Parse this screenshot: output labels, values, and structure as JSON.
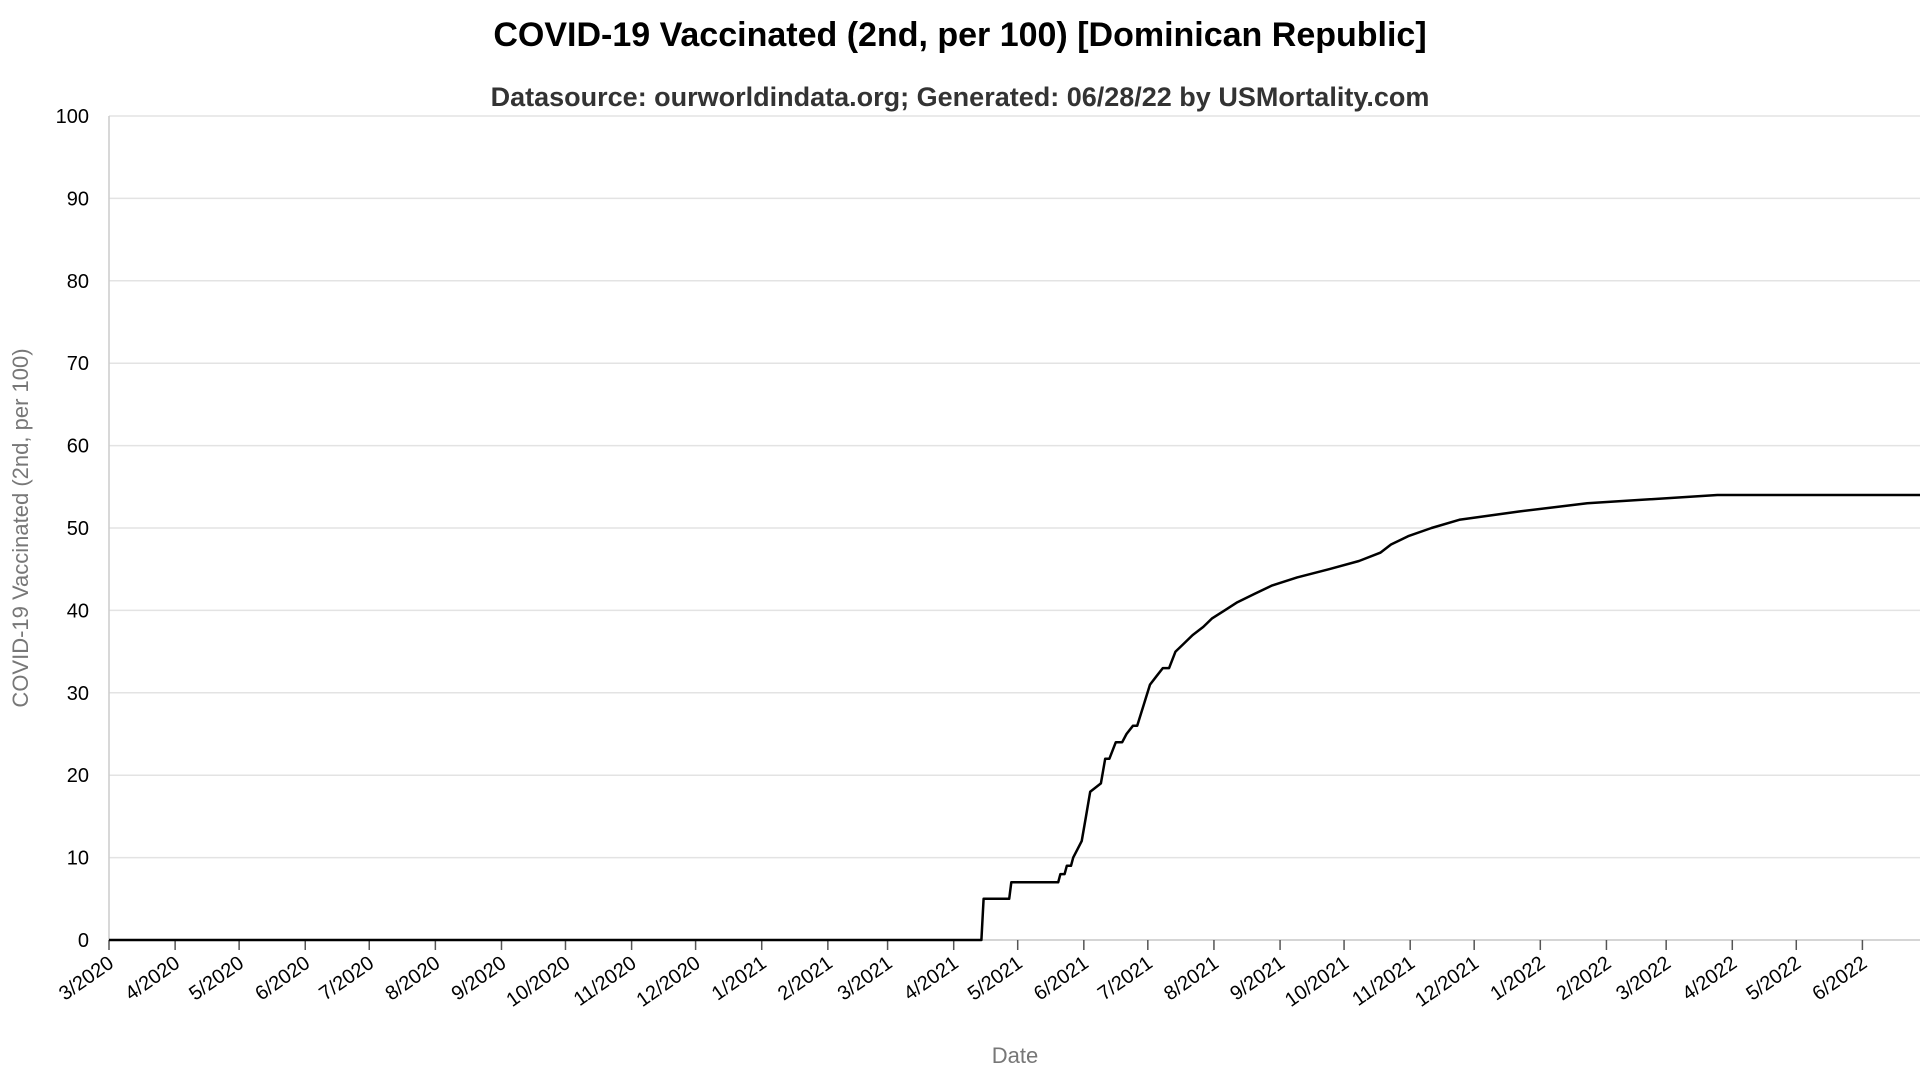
{
  "chart_data": {
    "type": "line",
    "title": "COVID-19 Vaccinated (2nd, per 100) [Dominican Republic]",
    "subtitle": "Datasource: ourworldindata.org; Generated: 06/28/22 by USMortality.com",
    "xlabel": "Date",
    "ylabel": "COVID-19 Vaccinated (2nd, per 100)",
    "ylim": [
      0,
      100
    ],
    "xlim": [
      "2020-03-01",
      "2022-06-28"
    ],
    "grid": true,
    "line_color": "#000000",
    "y_ticks": [
      0,
      10,
      20,
      30,
      40,
      50,
      60,
      70,
      80,
      90,
      100
    ],
    "x_ticks": [
      {
        "date": "2020-03-01",
        "label": "3/2020"
      },
      {
        "date": "2020-04-01",
        "label": "4/2020"
      },
      {
        "date": "2020-05-01",
        "label": "5/2020"
      },
      {
        "date": "2020-06-01",
        "label": "6/2020"
      },
      {
        "date": "2020-07-01",
        "label": "7/2020"
      },
      {
        "date": "2020-08-01",
        "label": "8/2020"
      },
      {
        "date": "2020-09-01",
        "label": "9/2020"
      },
      {
        "date": "2020-10-01",
        "label": "10/2020"
      },
      {
        "date": "2020-11-01",
        "label": "11/2020"
      },
      {
        "date": "2020-12-01",
        "label": "12/2020"
      },
      {
        "date": "2021-01-01",
        "label": "1/2021"
      },
      {
        "date": "2021-02-01",
        "label": "2/2021"
      },
      {
        "date": "2021-03-01",
        "label": "3/2021"
      },
      {
        "date": "2021-04-01",
        "label": "4/2021"
      },
      {
        "date": "2021-05-01",
        "label": "5/2021"
      },
      {
        "date": "2021-06-01",
        "label": "6/2021"
      },
      {
        "date": "2021-07-01",
        "label": "7/2021"
      },
      {
        "date": "2021-08-01",
        "label": "8/2021"
      },
      {
        "date": "2021-09-01",
        "label": "9/2021"
      },
      {
        "date": "2021-10-01",
        "label": "10/2021"
      },
      {
        "date": "2021-11-01",
        "label": "11/2021"
      },
      {
        "date": "2021-12-01",
        "label": "12/2021"
      },
      {
        "date": "2022-01-01",
        "label": "1/2022"
      },
      {
        "date": "2022-02-01",
        "label": "2/2022"
      },
      {
        "date": "2022-03-01",
        "label": "3/2022"
      },
      {
        "date": "2022-04-01",
        "label": "4/2022"
      },
      {
        "date": "2022-05-01",
        "label": "5/2022"
      },
      {
        "date": "2022-06-01",
        "label": "6/2022"
      }
    ],
    "series": [
      {
        "x": [
          "2020-03-01",
          "2021-04-14",
          "2021-04-15",
          "2021-04-27",
          "2021-04-28",
          "2021-05-20",
          "2021-05-21",
          "2021-05-23",
          "2021-05-24",
          "2021-05-26",
          "2021-05-27",
          "2021-05-29",
          "2021-05-31",
          "2021-06-02",
          "2021-06-04",
          "2021-06-09",
          "2021-06-11",
          "2021-06-13",
          "2021-06-16",
          "2021-06-19",
          "2021-06-21",
          "2021-06-24",
          "2021-06-26",
          "2021-07-02",
          "2021-07-05",
          "2021-07-08",
          "2021-07-11",
          "2021-07-14",
          "2021-07-18",
          "2021-07-22",
          "2021-07-27",
          "2021-07-31",
          "2021-08-06",
          "2021-08-12",
          "2021-08-20",
          "2021-08-28",
          "2021-09-09",
          "2021-09-24",
          "2021-10-08",
          "2021-10-18",
          "2021-10-23",
          "2021-10-31",
          "2021-11-11",
          "2021-11-24",
          "2021-12-22",
          "2022-01-23",
          "2022-03-25",
          "2022-06-28"
        ],
        "y": [
          0,
          0,
          5,
          5,
          7,
          7,
          8,
          8,
          9,
          9,
          10,
          11,
          12,
          15,
          18,
          19,
          22,
          22,
          24,
          24,
          25,
          26,
          26,
          31,
          32,
          33,
          33,
          35,
          36,
          37,
          38,
          39,
          40,
          41,
          42,
          43,
          44,
          45,
          46,
          47,
          48,
          49,
          50,
          51,
          52,
          53,
          54,
          54
        ]
      }
    ]
  }
}
